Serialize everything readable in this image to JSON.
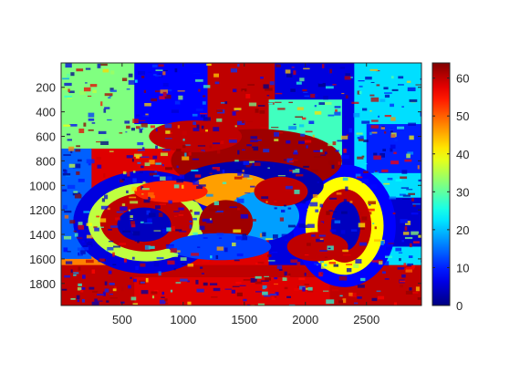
{
  "chart_data": {
    "type": "heatmap",
    "title": "",
    "xlabel": "",
    "ylabel": "",
    "colormap": "jet",
    "x_range": [
      1,
      2950
    ],
    "y_range": [
      1,
      1980
    ],
    "y_direction": "reversed",
    "x_ticks": [
      500,
      1000,
      1500,
      2000,
      2500
    ],
    "x_tick_labels": [
      "500",
      "1000",
      "1500",
      "2000",
      "2500"
    ],
    "y_ticks": [
      200,
      400,
      600,
      800,
      1000,
      1200,
      1400,
      1600,
      1800
    ],
    "y_tick_labels": [
      "200",
      "400",
      "600",
      "800",
      "1000",
      "1200",
      "1400",
      "1600",
      "1800"
    ],
    "colorbar": {
      "range": [
        0,
        64
      ],
      "ticks": [
        0,
        10,
        20,
        30,
        40,
        50,
        60
      ],
      "tick_labels": [
        "0",
        "10",
        "20",
        "30",
        "40",
        "50",
        "60"
      ]
    },
    "background_level": 58,
    "regions": [
      {
        "shape": "rect",
        "x": [
          1,
          2950
        ],
        "y": [
          1,
          1980
        ],
        "value": 58
      },
      {
        "shape": "rect",
        "x": [
          1700,
          2950
        ],
        "y": [
          1,
          1980
        ],
        "value": 6
      },
      {
        "shape": "rect",
        "x": [
          2400,
          2950
        ],
        "y": [
          1,
          1980
        ],
        "value": 22
      },
      {
        "shape": "rect",
        "x": [
          1,
          900
        ],
        "y": [
          1,
          700
        ],
        "value": 32
      },
      {
        "shape": "rect",
        "x": [
          600,
          1200
        ],
        "y": [
          1,
          500
        ],
        "value": 8
      },
      {
        "shape": "rect",
        "x": [
          1200,
          1750
        ],
        "y": [
          1,
          600
        ],
        "value": 60
      },
      {
        "shape": "rect",
        "x": [
          1700,
          2300
        ],
        "y": [
          300,
          900
        ],
        "value": 28
      },
      {
        "shape": "rect",
        "x": [
          2500,
          2950
        ],
        "y": [
          500,
          900
        ],
        "value": 10
      },
      {
        "shape": "rect",
        "x": [
          1,
          700
        ],
        "y": [
          1500,
          1980
        ],
        "value": 48
      },
      {
        "shape": "rect",
        "x": [
          1,
          2950
        ],
        "y": [
          1650,
          1980
        ],
        "value": 60
      },
      {
        "shape": "rect",
        "x": [
          600,
          2200
        ],
        "y": [
          1750,
          1980
        ],
        "value": 58
      },
      {
        "shape": "rect",
        "x": [
          1,
          250
        ],
        "y": [
          700,
          1600
        ],
        "value": 14
      },
      {
        "shape": "rect",
        "x": [
          2200,
          2950
        ],
        "y": [
          1100,
          1500
        ],
        "value": 5
      },
      {
        "shape": "ellipse",
        "cx": 700,
        "cy": 1300,
        "rx": 600,
        "ry": 420,
        "value": 6
      },
      {
        "shape": "ellipse",
        "cx": 700,
        "cy": 1300,
        "rx": 480,
        "ry": 320,
        "value": 36
      },
      {
        "shape": "ellipse",
        "cx": 700,
        "cy": 1300,
        "rx": 380,
        "ry": 240,
        "value": 60
      },
      {
        "shape": "ellipse",
        "cx": 680,
        "cy": 1320,
        "rx": 220,
        "ry": 140,
        "value": 4
      },
      {
        "shape": "ellipse",
        "cx": 2320,
        "cy": 1330,
        "rx": 420,
        "ry": 500,
        "value": 8
      },
      {
        "shape": "ellipse",
        "cx": 2320,
        "cy": 1330,
        "rx": 320,
        "ry": 400,
        "value": 40
      },
      {
        "shape": "ellipse",
        "cx": 2320,
        "cy": 1330,
        "rx": 220,
        "ry": 300,
        "value": 60
      },
      {
        "shape": "ellipse",
        "cx": 2330,
        "cy": 1330,
        "rx": 120,
        "ry": 200,
        "value": 4
      },
      {
        "shape": "ellipse",
        "cx": 1600,
        "cy": 800,
        "rx": 700,
        "ry": 260,
        "value": 62
      },
      {
        "shape": "ellipse",
        "cx": 1550,
        "cy": 1000,
        "rx": 600,
        "ry": 200,
        "value": 3
      },
      {
        "shape": "ellipse",
        "cx": 1400,
        "cy": 1050,
        "rx": 350,
        "ry": 150,
        "value": 46
      },
      {
        "shape": "ellipse",
        "cx": 1650,
        "cy": 1250,
        "rx": 300,
        "ry": 200,
        "value": 18
      },
      {
        "shape": "ellipse",
        "cx": 1350,
        "cy": 1300,
        "rx": 220,
        "ry": 180,
        "value": 62
      },
      {
        "shape": "ellipse",
        "cx": 1800,
        "cy": 1050,
        "rx": 220,
        "ry": 120,
        "value": 60
      },
      {
        "shape": "ellipse",
        "cx": 1100,
        "cy": 600,
        "rx": 380,
        "ry": 130,
        "value": 60
      },
      {
        "shape": "ellipse",
        "cx": 1300,
        "cy": 1500,
        "rx": 420,
        "ry": 110,
        "value": 12
      },
      {
        "shape": "ellipse",
        "cx": 900,
        "cy": 1050,
        "rx": 300,
        "ry": 90,
        "value": 54
      },
      {
        "shape": "ellipse",
        "cx": 2100,
        "cy": 1500,
        "rx": 250,
        "ry": 120,
        "value": 60
      }
    ]
  }
}
